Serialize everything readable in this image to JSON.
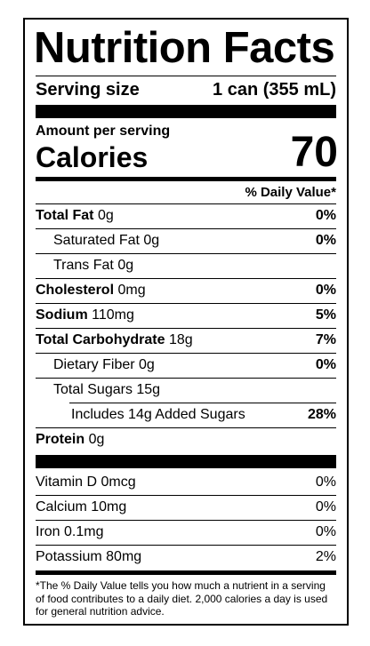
{
  "title": "Nutrition Facts",
  "serving": {
    "label": "Serving size",
    "value": "1 can (355 mL)"
  },
  "amount_per_serving": "Amount per serving",
  "calories": {
    "label": "Calories",
    "value": "70"
  },
  "daily_value_header": "% Daily Value*",
  "nutrients": {
    "total_fat": {
      "name": "Total Fat",
      "amount": "0g",
      "dv": "0%"
    },
    "saturated_fat": {
      "name": "Saturated Fat 0g",
      "dv": "0%"
    },
    "trans_fat": {
      "name": "Trans Fat 0g"
    },
    "cholesterol": {
      "name": "Cholesterol",
      "amount": "0mg",
      "dv": "0%"
    },
    "sodium": {
      "name": "Sodium",
      "amount": "110mg",
      "dv": "5%"
    },
    "total_carb": {
      "name": "Total Carbohydrate",
      "amount": "18g",
      "dv": "7%"
    },
    "dietary_fiber": {
      "name": "Dietary Fiber 0g",
      "dv": "0%"
    },
    "total_sugars": {
      "name": "Total Sugars 15g"
    },
    "added_sugars": {
      "name": "Includes 14g Added Sugars",
      "dv": "28%"
    },
    "protein": {
      "name": "Protein",
      "amount": "0g"
    }
  },
  "vitamins": {
    "vitamin_d": {
      "name": "Vitamin D 0mcg",
      "dv": "0%"
    },
    "calcium": {
      "name": "Calcium 10mg",
      "dv": "0%"
    },
    "iron": {
      "name": "Iron 0.1mg",
      "dv": "0%"
    },
    "potassium": {
      "name": "Potassium 80mg",
      "dv": "2%"
    }
  },
  "footnote": "*The % Daily Value tells you how much a nutrient in a serving of food contributes to a daily diet. 2,000 calories a day is used for general nutrition advice."
}
